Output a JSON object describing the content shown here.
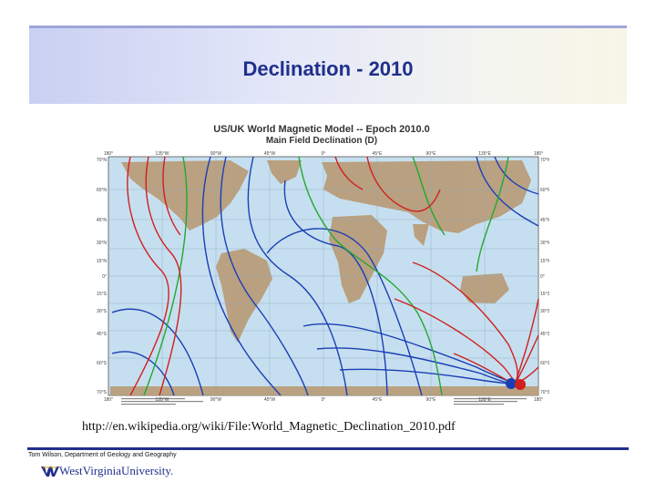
{
  "slide": {
    "title": "Declination - 2010",
    "url": "http://en.wikipedia.org/wiki/File:World_Magnetic_Declination_2010.pdf",
    "footer_text": "Tom Wilson, Department of Geology and Geography",
    "logo_text": "WestVirginiaUniversity."
  },
  "map": {
    "title_line1": "US/UK World Magnetic Model -- Epoch 2010.0",
    "title_line2": "Main Field Declination (D)",
    "lon_labels": [
      "180°",
      "135°W",
      "90°W",
      "45°W",
      "0°",
      "45°E",
      "90°E",
      "135°E",
      "180°"
    ],
    "lat_labels": [
      "70°N",
      "60°N",
      "45°N",
      "30°N",
      "15°N",
      "0°",
      "15°S",
      "30°S",
      "45°S",
      "60°S",
      "70°S"
    ],
    "colors": {
      "positive": "#d0201c",
      "negative": "#1a3fb5",
      "zero": "#22a830",
      "land": "#b89a74",
      "ocean": "#c6dff0"
    }
  }
}
